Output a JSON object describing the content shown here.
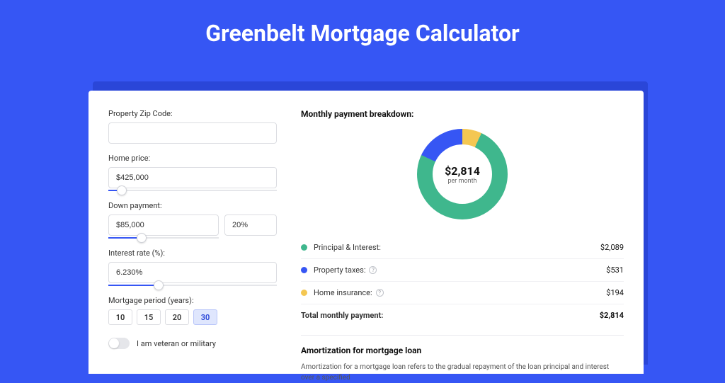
{
  "page": {
    "title": "Greenbelt Mortgage Calculator",
    "background_color": "#3656f4"
  },
  "form": {
    "zip_label": "Property Zip Code:",
    "zip_value": "",
    "home_price_label": "Home price:",
    "home_price_value": "$425,000",
    "home_price_slider_pct": 8,
    "down_payment_label": "Down payment:",
    "down_payment_value": "$85,000",
    "down_payment_pct_value": "20%",
    "down_payment_slider_pct": 30,
    "interest_label": "Interest rate (%):",
    "interest_value": "6.230%",
    "interest_slider_pct": 30,
    "period_label": "Mortgage period (years):",
    "period_options": [
      "10",
      "15",
      "20",
      "30"
    ],
    "period_selected": "30",
    "veteran_label": "I am veteran or military",
    "veteran_on": false
  },
  "breakdown": {
    "title": "Monthly payment breakdown:",
    "center_amount": "$2,814",
    "center_sub": "per month",
    "colors": {
      "principal": "#3fb78d",
      "taxes": "#3656f4",
      "insurance": "#f4c752"
    },
    "segments_deg": {
      "insurance_end": 25,
      "principal_end": 295,
      "taxes_end": 360
    },
    "rows": [
      {
        "key": "principal",
        "label": "Principal & Interest:",
        "value": "$2,089",
        "info": false
      },
      {
        "key": "taxes",
        "label": "Property taxes:",
        "value": "$531",
        "info": true
      },
      {
        "key": "insurance",
        "label": "Home insurance:",
        "value": "$194",
        "info": true
      }
    ],
    "total_label": "Total monthly payment:",
    "total_value": "$2,814"
  },
  "amortization": {
    "title": "Amortization for mortgage loan",
    "body": "Amortization for a mortgage loan refers to the gradual repayment of the loan principal and interest over a specified"
  }
}
